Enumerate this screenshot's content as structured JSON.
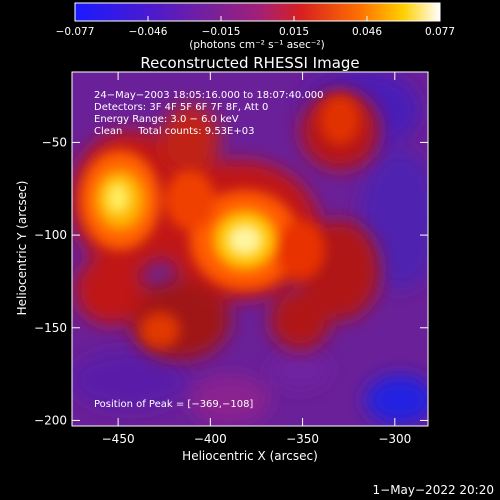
{
  "colorbar": {
    "tick_labels": [
      "−0.077",
      "−0.046",
      "−0.015",
      "0.015",
      "0.046",
      "0.077"
    ],
    "units_label": "(photons cm⁻² s⁻¹ asec⁻²)",
    "colors": [
      "#1a1aff",
      "#5a1aa8",
      "#8a2090",
      "#c02020",
      "#ff6000",
      "#ffd000",
      "#ffffff"
    ]
  },
  "plot": {
    "title": "Reconstructed RHESSI Image",
    "xlabel": "Heliocentric X (arcsec)",
    "ylabel": "Heliocentric Y (arcsec)",
    "x_ticks": [
      "−450",
      "−400",
      "−350",
      "−300"
    ],
    "y_ticks": [
      "−50",
      "−100",
      "−150",
      "−200"
    ],
    "x_range": [
      -475,
      -282
    ],
    "y_range": [
      -203,
      -12
    ]
  },
  "annotations": {
    "line1": "24−May−2003 18:05:16.000 to 18:07:40.000",
    "line2": "Detectors: 3F 4F 5F 6F 7F 8F, Att 0",
    "line3": "Energy Range: 3.0 − 6.0 keV",
    "line4": "Clean     Total counts: 9.53E+03",
    "peak": "Position of Peak = [−369,−108]"
  },
  "footer": {
    "date": "1−May−2022 20:20"
  }
}
